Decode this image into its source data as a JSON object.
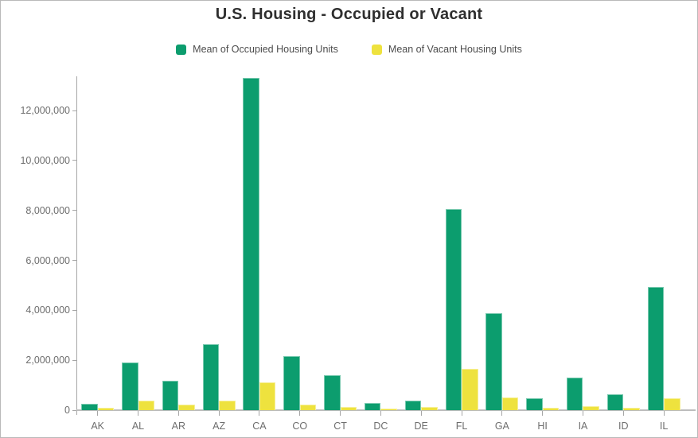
{
  "chart_data": {
    "type": "bar",
    "title": "U.S. Housing - Occupied or Vacant",
    "categories": [
      "AK",
      "AL",
      "AR",
      "AZ",
      "CA",
      "CO",
      "CT",
      "DC",
      "DE",
      "FL",
      "GA",
      "HI",
      "IA",
      "ID",
      "IL"
    ],
    "series": [
      {
        "name": "Mean of Occupied Housing Units",
        "color": "#0c9d6e",
        "values": [
          265000,
          1900000,
          1170000,
          2650000,
          13300000,
          2150000,
          1400000,
          275000,
          390000,
          8040000,
          3870000,
          470000,
          1295000,
          645000,
          4950000
        ]
      },
      {
        "name": "Mean of Vacant Housing Units",
        "color": "#eee23e",
        "values": [
          85000,
          390000,
          230000,
          390000,
          1120000,
          230000,
          135000,
          50000,
          135000,
          1650000,
          500000,
          105000,
          145000,
          105000,
          480000
        ]
      }
    ],
    "xlabel": "",
    "ylabel": "",
    "ylim": [
      0,
      13370000
    ],
    "y_ticks": [
      0,
      2000000,
      4000000,
      6000000,
      8000000,
      10000000,
      12000000
    ],
    "grid": false,
    "legend_position": "top"
  },
  "colors": {
    "occupied": "#0c9d6e",
    "vacant": "#eee23e",
    "title_text": "#2f2f2f",
    "legend_text": "#4c4c4c",
    "axis_text": "#6e6e6e",
    "axis_line": "#a6a6a6",
    "frame_border": "#b9b9b9"
  }
}
